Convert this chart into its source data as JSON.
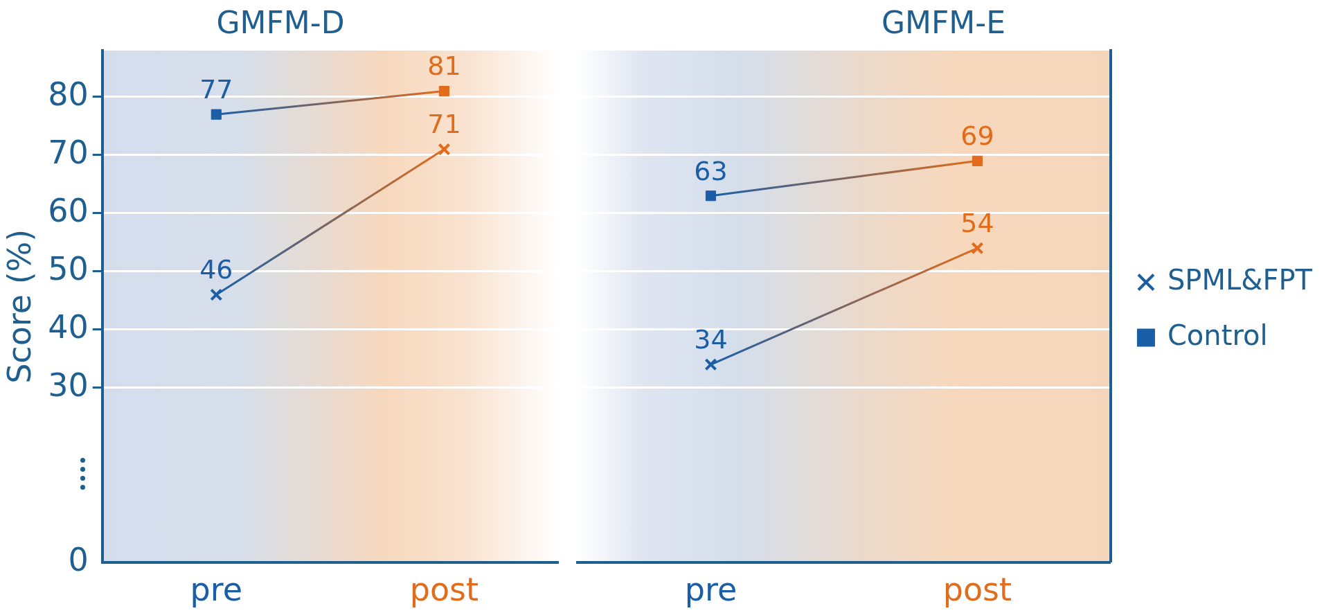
{
  "chart_data": [
    {
      "type": "line",
      "title": "GMFM-D",
      "ylabel": "Score (%)",
      "categories": [
        "pre",
        "post"
      ],
      "series": [
        {
          "color": "#1f5f8f",
          "colors": [
            "#1b5ea6",
            "#e06c1c"
          ],
          "marker": "cross",
          "values": [
            46,
            71
          ]
        },
        {
          "color": "#1f5f8f",
          "colors": [
            "#1b5ea6",
            "#e06c1c"
          ],
          "marker": "square",
          "values": [
            77,
            81
          ]
        }
      ],
      "ylim": [
        0,
        88
      ],
      "yticks": [
        0,
        30,
        40,
        50,
        60,
        70,
        80
      ],
      "grid": "y",
      "legend": false,
      "data_labels": true
    },
    {
      "type": "line",
      "title": "GMFM-E",
      "categories": [
        "pre",
        "post"
      ],
      "series": [
        {
          "name": "SPML&FPT",
          "color": "#1b5ea6",
          "colors": [
            "#1b5ea6",
            "#e06c1c"
          ],
          "marker": "cross",
          "values": [
            34,
            54
          ]
        },
        {
          "name": "Control",
          "color": "#1b5ea6",
          "colors": [
            "#1b5ea6",
            "#e06c1c"
          ],
          "marker": "square",
          "values": [
            63,
            69
          ]
        }
      ],
      "ylim": [
        0,
        88
      ],
      "yticks": [
        0,
        30,
        40,
        50,
        60,
        70,
        80
      ],
      "grid": "y",
      "legend": "right",
      "data_labels": true,
      "tick_labels": "x"
    }
  ]
}
